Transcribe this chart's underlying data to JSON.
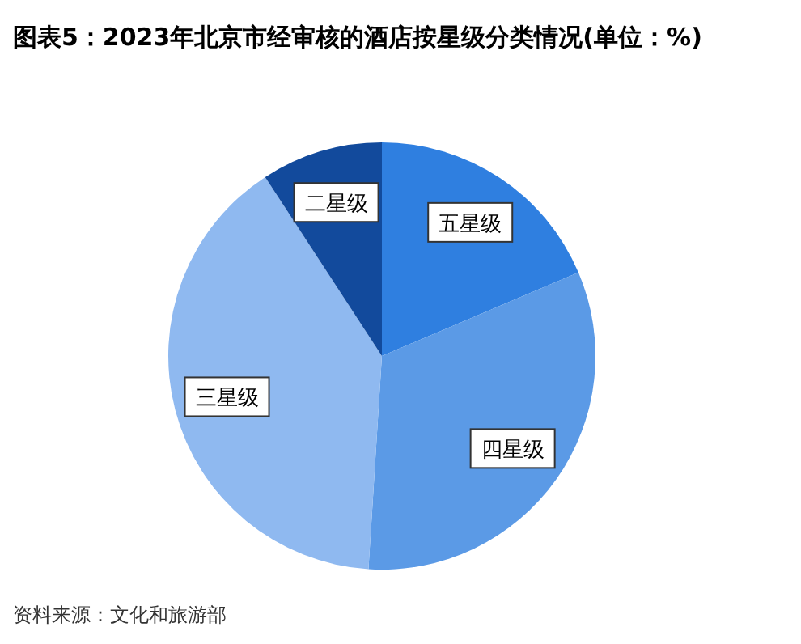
{
  "chart_data": {
    "type": "pie",
    "title": "图表5：2023年北京市经审核的酒店按星级分类情况(单位：%)",
    "categories": [
      "五星级",
      "四星级",
      "三星级",
      "二星级"
    ],
    "values": [
      18.6,
      32.4,
      39.8,
      9.2
    ],
    "colors": [
      "#2f7fe0",
      "#5b9ae6",
      "#8fb9f0",
      "#124a9c"
    ],
    "annotations": [
      "资料来源：文化和旅游部"
    ]
  }
}
